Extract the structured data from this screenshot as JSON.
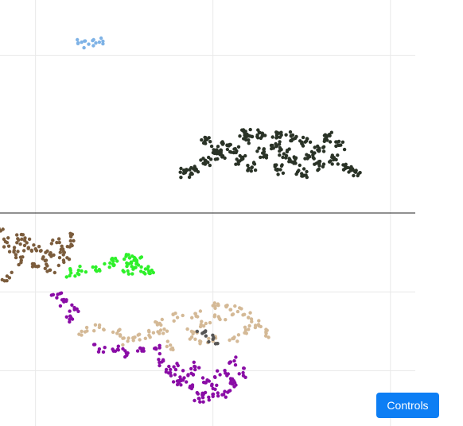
{
  "colors": {
    "accent": "#0d7ef4",
    "gridline": "#e9e9e9",
    "axis_line": "#222222"
  },
  "controls": {
    "label": "Controls"
  },
  "chart_data": {
    "type": "scatter",
    "title": "",
    "xlabel": "",
    "ylabel": "",
    "xlim": [
      -1,
      10.7
    ],
    "ylim": [
      -5.4,
      5.4
    ],
    "grid": true,
    "legend": "none",
    "series": [
      {
        "color": "#7fb3e6",
        "points": [
          [
            1.2,
            4.31
          ],
          [
            1.3,
            4.33
          ],
          [
            1.4,
            4.36
          ],
          [
            1.5,
            4.28
          ],
          [
            1.61,
            4.37
          ],
          [
            1.7,
            4.31
          ],
          [
            1.8,
            4.33
          ],
          [
            1.9,
            4.29
          ]
        ]
      },
      {
        "color": "#2a3327",
        "points": [
          [
            4.2,
            1.02
          ],
          [
            4.5,
            1.08
          ],
          [
            4.8,
            1.32
          ],
          [
            5.2,
            1.48
          ],
          [
            5.6,
            1.62
          ],
          [
            6.0,
            1.85
          ],
          [
            6.4,
            2.0
          ],
          [
            6.8,
            2.02
          ],
          [
            7.2,
            1.95
          ],
          [
            7.6,
            1.8
          ],
          [
            8.0,
            1.58
          ],
          [
            8.4,
            1.35
          ],
          [
            8.8,
            1.15
          ],
          [
            9.0,
            1.05
          ],
          [
            8.0,
            1.2
          ],
          [
            7.3,
            1.3
          ],
          [
            6.4,
            1.52
          ],
          [
            5.4,
            1.72
          ],
          [
            4.8,
            1.85
          ],
          [
            6.8,
            1.7
          ],
          [
            7.7,
            1.45
          ],
          [
            5.8,
            1.35
          ],
          [
            6.9,
            1.1
          ],
          [
            7.5,
            1.0
          ],
          [
            8.2,
            1.92
          ],
          [
            5.9,
            2.02
          ],
          [
            8.6,
            1.72
          ],
          [
            5.1,
            1.6
          ],
          [
            7.0,
            1.5
          ],
          [
            6.1,
            1.16
          ]
        ]
      },
      {
        "color": "#7b5c3c",
        "points": [
          [
            -1.0,
            -0.45
          ],
          [
            -0.8,
            -0.75
          ],
          [
            -0.5,
            -0.65
          ],
          [
            -0.2,
            -0.9
          ],
          [
            0.1,
            -0.85
          ],
          [
            0.4,
            -1.05
          ],
          [
            0.7,
            -1.0
          ],
          [
            0.9,
            -0.85
          ],
          [
            1.0,
            -0.6
          ],
          [
            0.8,
            -1.25
          ],
          [
            0.4,
            -1.45
          ],
          [
            0.0,
            -1.35
          ],
          [
            -0.4,
            -1.2
          ],
          [
            -0.8,
            -1.6
          ],
          [
            -0.3,
            -0.7
          ],
          [
            0.3,
            -1.2
          ],
          [
            -0.6,
            -0.95
          ],
          [
            0.6,
            -0.75
          ]
        ]
      },
      {
        "color": "#2ef02a",
        "points": [
          [
            1.0,
            -1.52
          ],
          [
            1.3,
            -1.47
          ],
          [
            1.7,
            -1.37
          ],
          [
            2.1,
            -1.27
          ],
          [
            2.3,
            -1.22
          ],
          [
            2.5,
            -1.17
          ],
          [
            2.7,
            -1.27
          ],
          [
            2.9,
            -1.32
          ],
          [
            3.1,
            -1.42
          ],
          [
            3.2,
            -1.52
          ],
          [
            2.6,
            -1.47
          ],
          [
            2.85,
            -1.2
          ]
        ]
      },
      {
        "color": "#d4b996",
        "points": [
          [
            1.3,
            -3.0
          ],
          [
            1.8,
            -2.9
          ],
          [
            2.3,
            -3.05
          ],
          [
            2.8,
            -3.15
          ],
          [
            3.2,
            -3.1
          ],
          [
            3.6,
            -3.05
          ],
          [
            4.0,
            -2.65
          ],
          [
            4.5,
            -2.55
          ],
          [
            5.0,
            -2.35
          ],
          [
            5.5,
            -2.45
          ],
          [
            6.0,
            -2.65
          ],
          [
            6.5,
            -3.05
          ],
          [
            6.2,
            -2.85
          ],
          [
            5.6,
            -3.15
          ],
          [
            5.0,
            -3.25
          ],
          [
            4.4,
            -3.0
          ],
          [
            3.8,
            -3.35
          ],
          [
            4.8,
            -2.8
          ],
          [
            6.0,
            -2.95
          ],
          [
            5.2,
            -2.7
          ],
          [
            3.5,
            -2.8
          ],
          [
            2.6,
            -3.25
          ],
          [
            4.5,
            -3.2
          ],
          [
            5.7,
            -2.5
          ]
        ]
      },
      {
        "color": "#8a0da6",
        "points": [
          [
            0.6,
            -2.15
          ],
          [
            0.8,
            -2.25
          ],
          [
            1.1,
            -2.45
          ],
          [
            1.0,
            -2.65
          ],
          [
            1.8,
            -3.45
          ],
          [
            2.2,
            -3.5
          ],
          [
            2.6,
            -3.55
          ],
          [
            3.0,
            -3.5
          ],
          [
            3.4,
            -3.45
          ],
          [
            3.6,
            -3.75
          ],
          [
            3.8,
            -4.05
          ],
          [
            4.1,
            -4.25
          ],
          [
            4.4,
            -4.45
          ],
          [
            4.7,
            -4.6
          ],
          [
            5.0,
            -4.65
          ],
          [
            5.3,
            -4.6
          ],
          [
            5.6,
            -4.4
          ],
          [
            5.85,
            -4.05
          ],
          [
            5.6,
            -3.75
          ],
          [
            4.5,
            -3.9
          ],
          [
            4.0,
            -4.35
          ],
          [
            4.8,
            -4.3
          ],
          [
            5.2,
            -4.1
          ],
          [
            4.3,
            -4.1
          ],
          [
            5.0,
            -4.45
          ],
          [
            4.6,
            -4.7
          ],
          [
            5.5,
            -4.2
          ],
          [
            3.9,
            -3.9
          ]
        ]
      },
      {
        "color": "#555555",
        "points": [
          [
            4.7,
            -3.05
          ],
          [
            5.0,
            -3.2
          ]
        ]
      }
    ]
  }
}
